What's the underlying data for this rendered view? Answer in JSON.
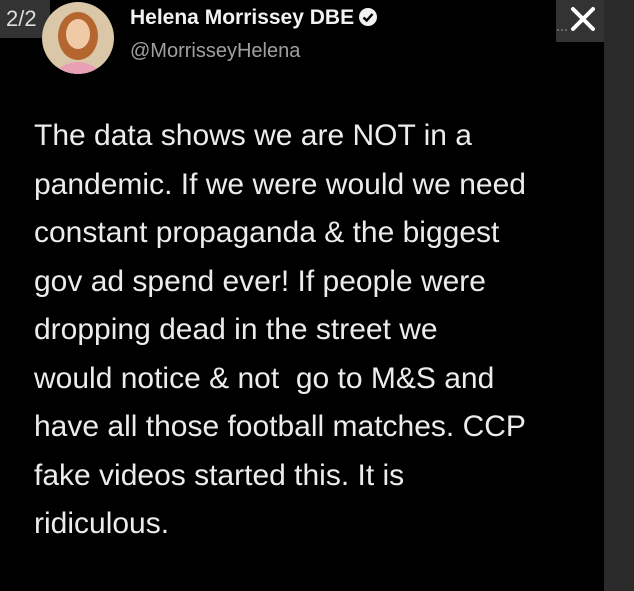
{
  "page_counter": "2/2",
  "author": {
    "name": "Helena Morrissey DBE",
    "handle": "@MorrisseyHelena"
  },
  "tweet": {
    "lines": [
      "The data shows we are NOT in a",
      "pandemic. If we were would we need",
      "constant propaganda & the biggest",
      "gov ad spend ever! If people were",
      "dropping dead in the street we",
      "would notice & not  go to M&S and",
      "have all those football matches. CCP",
      "fake videos started this. It is",
      "ridiculous."
    ]
  }
}
